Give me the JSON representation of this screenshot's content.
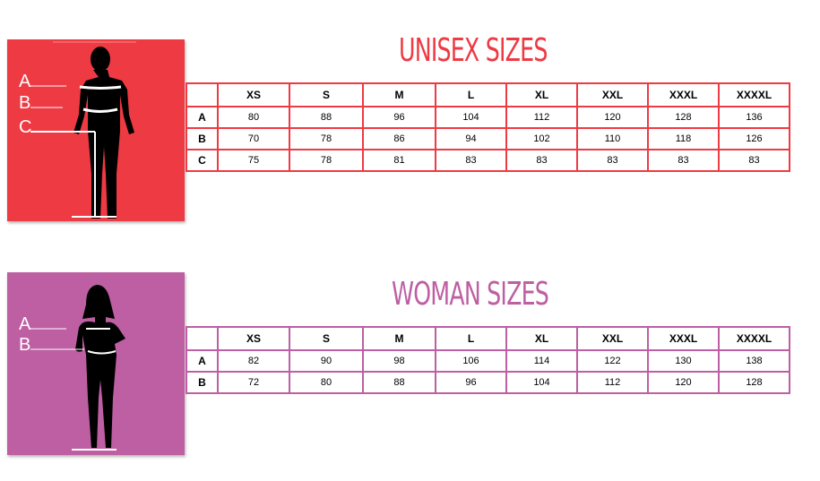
{
  "colors": {
    "unisex": "#ee3a43",
    "woman": "#bd5fa2"
  },
  "unisex": {
    "title": "UNISEX SIZES",
    "labels": [
      "A",
      "B",
      "C"
    ],
    "headers": [
      "XS",
      "S",
      "M",
      "L",
      "XL",
      "XXL",
      "XXXL",
      "XXXXL"
    ],
    "rows": [
      {
        "label": "A",
        "values": [
          "80",
          "88",
          "96",
          "104",
          "112",
          "120",
          "128",
          "136"
        ]
      },
      {
        "label": "B",
        "values": [
          "70",
          "78",
          "86",
          "94",
          "102",
          "110",
          "118",
          "126"
        ]
      },
      {
        "label": "C",
        "values": [
          "75",
          "78",
          "81",
          "83",
          "83",
          "83",
          "83",
          "83"
        ]
      }
    ]
  },
  "woman": {
    "title": "WOMAN SIZES",
    "labels": [
      "A",
      "B"
    ],
    "headers": [
      "XS",
      "S",
      "M",
      "L",
      "XL",
      "XXL",
      "XXXL",
      "XXXXL"
    ],
    "rows": [
      {
        "label": "A",
        "values": [
          "82",
          "90",
          "98",
          "106",
          "114",
          "122",
          "130",
          "138"
        ]
      },
      {
        "label": "B",
        "values": [
          "72",
          "80",
          "88",
          "96",
          "104",
          "112",
          "120",
          "128"
        ]
      }
    ]
  }
}
